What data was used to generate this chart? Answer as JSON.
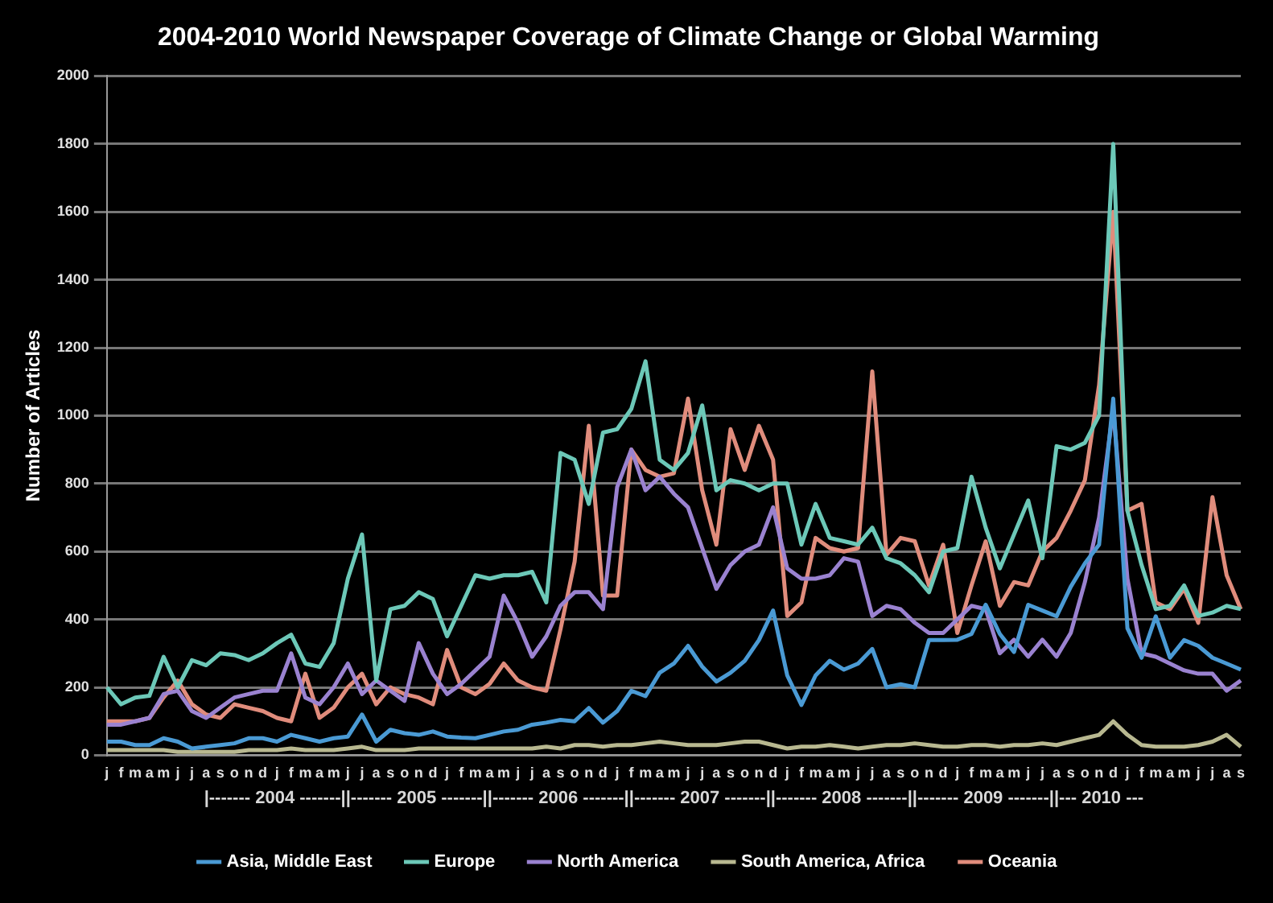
{
  "chart_data": {
    "type": "line",
    "title": "2004-2010 World Newspaper Coverage of Climate Change or Global Warming",
    "ylabel": "Number of Articles",
    "categories": [
      "j",
      "f",
      "m",
      "a",
      "m",
      "j",
      "j",
      "a",
      "s",
      "o",
      "n",
      "d",
      "j",
      "f",
      "m",
      "a",
      "m",
      "j",
      "j",
      "a",
      "s",
      "o",
      "n",
      "d",
      "j",
      "f",
      "m",
      "a",
      "m",
      "j",
      "j",
      "a",
      "s",
      "o",
      "n",
      "d",
      "j",
      "f",
      "m",
      "a",
      "m",
      "j",
      "j",
      "a",
      "s",
      "o",
      "n",
      "d",
      "j",
      "f",
      "m",
      "a",
      "m",
      "j",
      "j",
      "a",
      "s",
      "o",
      "n",
      "d",
      "j",
      "f",
      "m",
      "a",
      "m",
      "j",
      "j",
      "a",
      "s",
      "o",
      "n",
      "d",
      "j",
      "f",
      "m",
      "a",
      "m",
      "j",
      "j",
      "a",
      "s"
    ],
    "series": [
      {
        "name": "Asia, Middle East",
        "color": "#4a9ad4",
        "values": [
          40,
          40,
          30,
          30,
          50,
          40,
          20,
          25,
          30,
          35,
          50,
          50,
          40,
          60,
          50,
          40,
          50,
          55,
          120,
          40,
          75,
          65,
          60,
          70,
          55,
          52,
          50,
          60,
          70,
          75,
          90,
          96,
          104,
          100,
          139,
          96,
          130,
          190,
          174,
          243,
          270,
          322,
          261,
          217,
          243,
          278,
          339,
          426,
          235,
          148,
          235,
          278,
          252,
          270,
          313,
          200,
          209,
          200,
          339,
          339,
          340,
          357,
          443,
          357,
          304,
          443,
          426,
          409,
          496,
          565,
          620,
          1050,
          374,
          287,
          409,
          287,
          339,
          322,
          287,
          270,
          252
        ]
      },
      {
        "name": "Europe",
        "color": "#6cc8b8",
        "values": [
          200,
          150,
          170,
          175,
          290,
          200,
          280,
          265,
          300,
          295,
          280,
          300,
          330,
          355,
          270,
          260,
          330,
          520,
          650,
          220,
          430,
          440,
          480,
          460,
          350,
          440,
          530,
          520,
          530,
          530,
          540,
          450,
          890,
          870,
          740,
          950,
          960,
          1020,
          1160,
          870,
          840,
          890,
          1030,
          780,
          810,
          800,
          780,
          800,
          800,
          620,
          740,
          640,
          630,
          620,
          670,
          580,
          565,
          530,
          480,
          600,
          610,
          820,
          670,
          550,
          650,
          750,
          580,
          910,
          900,
          920,
          1000,
          1800,
          720,
          560,
          430,
          440,
          500,
          410,
          420,
          440,
          430
        ]
      },
      {
        "name": "North America",
        "color": "#9a82d0",
        "values": [
          90,
          90,
          100,
          110,
          180,
          190,
          130,
          110,
          140,
          170,
          180,
          190,
          190,
          300,
          170,
          150,
          200,
          270,
          180,
          220,
          190,
          160,
          330,
          240,
          180,
          210,
          250,
          290,
          470,
          390,
          290,
          350,
          440,
          480,
          480,
          430,
          790,
          900,
          780,
          820,
          770,
          730,
          610,
          490,
          560,
          600,
          620,
          730,
          550,
          520,
          520,
          530,
          580,
          570,
          410,
          440,
          430,
          390,
          360,
          360,
          400,
          440,
          430,
          300,
          340,
          290,
          340,
          290,
          360,
          510,
          700,
          1020,
          520,
          300,
          290,
          270,
          250,
          240,
          240,
          190,
          220
        ]
      },
      {
        "name": "South America, Africa",
        "color": "#b8b890",
        "values": [
          15,
          15,
          15,
          15,
          15,
          10,
          10,
          10,
          10,
          10,
          15,
          15,
          15,
          20,
          15,
          15,
          15,
          20,
          25,
          15,
          15,
          15,
          20,
          20,
          20,
          20,
          20,
          20,
          20,
          20,
          20,
          25,
          20,
          30,
          30,
          25,
          30,
          30,
          35,
          40,
          35,
          30,
          30,
          30,
          35,
          40,
          40,
          30,
          20,
          25,
          25,
          30,
          25,
          20,
          25,
          30,
          30,
          35,
          30,
          25,
          25,
          30,
          30,
          25,
          30,
          30,
          35,
          30,
          40,
          50,
          60,
          100,
          60,
          30,
          25,
          25,
          25,
          30,
          40,
          60,
          25
        ]
      },
      {
        "name": "Oceania",
        "color": "#e08c7c",
        "values": [
          100,
          100,
          100,
          110,
          170,
          220,
          150,
          120,
          110,
          150,
          140,
          130,
          110,
          100,
          240,
          110,
          140,
          200,
          240,
          150,
          200,
          180,
          170,
          150,
          310,
          200,
          180,
          210,
          270,
          220,
          200,
          190,
          370,
          570,
          970,
          470,
          470,
          900,
          840,
          820,
          830,
          1050,
          780,
          620,
          960,
          840,
          970,
          870,
          410,
          450,
          640,
          610,
          600,
          610,
          1130,
          590,
          640,
          630,
          500,
          620,
          360,
          500,
          630,
          440,
          510,
          500,
          600,
          640,
          720,
          810,
          1090,
          1600,
          720,
          740,
          450,
          430,
          490,
          390,
          760,
          530,
          430
        ]
      }
    ],
    "ylim": [
      0,
      2000
    ],
    "yticks": [
      0,
      200,
      400,
      600,
      800,
      1000,
      1200,
      1400,
      1600,
      1800,
      2000
    ],
    "grid": "y",
    "legend": "bottom",
    "marker": "none",
    "line_style": "solid",
    "annotations": [
      "|------- 2004 -------||------- 2005 -------||------- 2006 -------||------- 2007 -------||------- 2008 -------||------- 2009 -------||--- 2010 ---"
    ]
  }
}
